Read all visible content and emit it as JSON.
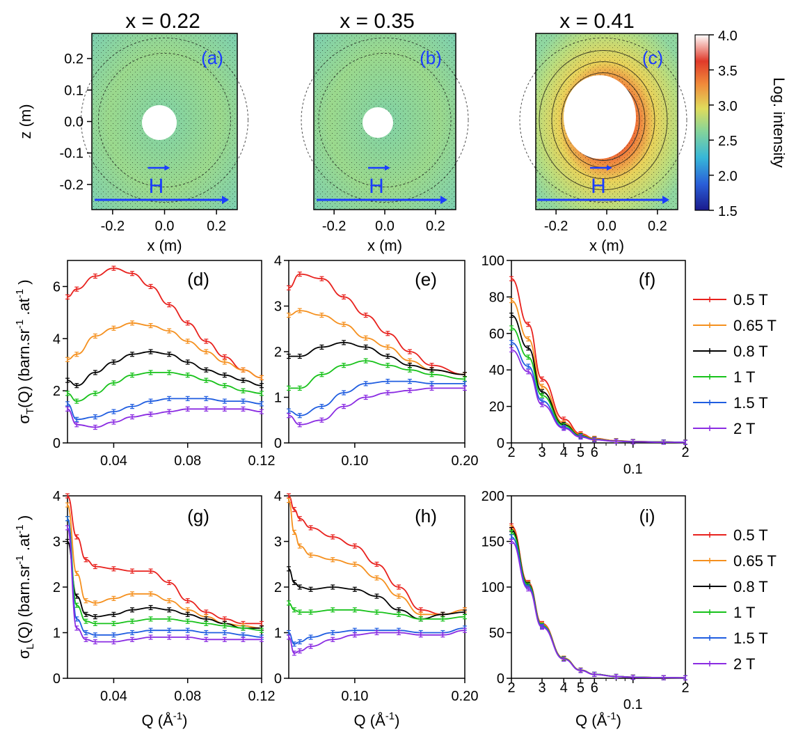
{
  "titles": [
    "x = 0.22",
    "x = 0.35",
    "x = 0.41"
  ],
  "maps": {
    "panels": [
      "(a)",
      "(b)",
      "(c)"
    ],
    "xlabel": "x (m)",
    "ylabel": "z (m)",
    "xticks": [
      "-0.2",
      "0.0",
      "0.2"
    ],
    "yticks": [
      "0.2",
      "0.1",
      "0.0",
      "-0.1",
      "-0.2"
    ],
    "field_label": "H",
    "colorbar": {
      "label": "Log. intensity",
      "ticks": [
        "4.0",
        "3.5",
        "3.0",
        "2.5",
        "2.0",
        "1.5"
      ],
      "range": [
        1.5,
        4.0
      ]
    },
    "colors": {
      "background_low": "#79cfa8",
      "background_high": "#c9dd74",
      "hole": "#ffffff",
      "arrow": "#1a3cff"
    }
  },
  "ylabel_T": "σT(Q) (barn.sr-1.at-1)",
  "ylabel_L": "σL(Q) (barn.sr-1.at-1)",
  "xlabel_Q": "Q (Å-1)",
  "legend": {
    "entries": [
      "0.5 T",
      "0.65 T",
      "0.8 T",
      "1 T",
      "1.5 T",
      "2 T"
    ],
    "colors": [
      "#e8211d",
      "#f5901e",
      "#000000",
      "#17c21a",
      "#1f5de0",
      "#8a2be2"
    ]
  },
  "chart_data": [
    {
      "panel": "(d)",
      "type": "line",
      "x": [
        0.015,
        0.02,
        0.03,
        0.04,
        0.05,
        0.06,
        0.07,
        0.08,
        0.09,
        0.1,
        0.11,
        0.12
      ],
      "xlim": [
        0.015,
        0.12
      ],
      "xticks": [
        "0.04",
        "0.08",
        "0.12"
      ],
      "ylim": [
        0,
        7
      ],
      "yticks": [
        "0",
        "2",
        "4",
        "6"
      ],
      "series": [
        {
          "name": "0.5 T",
          "values": [
            5.6,
            5.9,
            6.4,
            6.7,
            6.5,
            6.0,
            5.3,
            4.6,
            3.9,
            3.3,
            2.8,
            2.5
          ]
        },
        {
          "name": "0.65 T",
          "values": [
            3.2,
            3.4,
            4.1,
            4.4,
            4.6,
            4.5,
            4.3,
            3.9,
            3.5,
            3.1,
            2.8,
            2.5
          ]
        },
        {
          "name": "0.8 T",
          "values": [
            2.4,
            2.2,
            2.7,
            3.1,
            3.4,
            3.5,
            3.4,
            3.1,
            2.8,
            2.6,
            2.4,
            2.2
          ]
        },
        {
          "name": "1 T",
          "values": [
            1.9,
            1.6,
            1.9,
            2.3,
            2.6,
            2.7,
            2.7,
            2.6,
            2.4,
            2.2,
            2.0,
            1.9
          ]
        },
        {
          "name": "1.5 T",
          "values": [
            1.5,
            0.9,
            1.0,
            1.2,
            1.4,
            1.6,
            1.7,
            1.7,
            1.7,
            1.6,
            1.6,
            1.5
          ]
        },
        {
          "name": "2 T",
          "values": [
            1.3,
            0.7,
            0.6,
            0.8,
            1.0,
            1.1,
            1.2,
            1.3,
            1.3,
            1.3,
            1.3,
            1.2
          ]
        }
      ]
    },
    {
      "panel": "(e)",
      "type": "line",
      "x": [
        0.04,
        0.05,
        0.07,
        0.09,
        0.11,
        0.13,
        0.15,
        0.17,
        0.2
      ],
      "xlim": [
        0.04,
        0.2
      ],
      "xticks": [
        "0.10",
        "0.20"
      ],
      "ylim": [
        0,
        4
      ],
      "yticks": [
        "0",
        "1",
        "2",
        "3",
        "4"
      ],
      "series": [
        {
          "name": "0.5 T",
          "values": [
            3.4,
            3.7,
            3.6,
            3.2,
            2.8,
            2.4,
            2.0,
            1.7,
            1.5
          ]
        },
        {
          "name": "0.65 T",
          "values": [
            2.8,
            2.9,
            2.8,
            2.6,
            2.3,
            2.1,
            1.8,
            1.6,
            1.5
          ]
        },
        {
          "name": "0.8 T",
          "values": [
            1.9,
            1.9,
            2.1,
            2.2,
            2.1,
            1.9,
            1.7,
            1.6,
            1.5
          ]
        },
        {
          "name": "1 T",
          "values": [
            1.2,
            1.2,
            1.5,
            1.7,
            1.8,
            1.7,
            1.6,
            1.5,
            1.4
          ]
        },
        {
          "name": "1.5 T",
          "values": [
            0.7,
            0.6,
            0.8,
            1.1,
            1.3,
            1.35,
            1.35,
            1.3,
            1.3
          ]
        },
        {
          "name": "2 T",
          "values": [
            0.6,
            0.4,
            0.5,
            0.8,
            1.0,
            1.1,
            1.15,
            1.2,
            1.2
          ]
        }
      ]
    },
    {
      "panel": "(f)",
      "type": "line",
      "xscale": "log",
      "x": [
        0.02,
        0.025,
        0.03,
        0.04,
        0.05,
        0.06,
        0.08,
        0.1,
        0.15,
        0.2
      ],
      "xlim": [
        0.02,
        0.2
      ],
      "xticks": [
        "2",
        "3",
        "4",
        "5",
        "6",
        "0.1",
        "2"
      ],
      "ylim": [
        0,
        100
      ],
      "yticks": [
        "0",
        "20",
        "40",
        "60",
        "80",
        "100"
      ],
      "series": [
        {
          "name": "0.5 T",
          "values": [
            90,
            65,
            35,
            13,
            5,
            2.5,
            1.2,
            0.8,
            0.5,
            0.4
          ]
        },
        {
          "name": "0.65 T",
          "values": [
            78,
            57,
            31,
            11,
            4.5,
            2.3,
            1.1,
            0.7,
            0.5,
            0.4
          ]
        },
        {
          "name": "0.8 T",
          "values": [
            70,
            52,
            28,
            10,
            4,
            2,
            1,
            0.7,
            0.5,
            0.4
          ]
        },
        {
          "name": "1 T",
          "values": [
            63,
            47,
            26,
            9.5,
            3.8,
            2,
            1,
            0.7,
            0.5,
            0.4
          ]
        },
        {
          "name": "1.5 T",
          "values": [
            55,
            42,
            23,
            8.5,
            3.5,
            1.8,
            0.9,
            0.6,
            0.4,
            0.3
          ]
        },
        {
          "name": "2 T",
          "values": [
            51,
            39,
            21,
            8,
            3.2,
            1.7,
            0.9,
            0.6,
            0.4,
            0.3
          ]
        }
      ]
    },
    {
      "panel": "(g)",
      "type": "line",
      "x": [
        0.015,
        0.02,
        0.025,
        0.03,
        0.04,
        0.05,
        0.06,
        0.07,
        0.08,
        0.09,
        0.1,
        0.11,
        0.12
      ],
      "xlim": [
        0.015,
        0.12
      ],
      "xticks": [
        "0.04",
        "0.08",
        "0.12"
      ],
      "ylim": [
        0,
        4
      ],
      "yticks": [
        "0",
        "1",
        "2",
        "3",
        "4"
      ],
      "series": [
        {
          "name": "0.5 T",
          "values": [
            4.0,
            3.1,
            2.6,
            2.45,
            2.4,
            2.35,
            2.35,
            2.1,
            1.7,
            1.45,
            1.3,
            1.2,
            1.2
          ]
        },
        {
          "name": "0.65 T",
          "values": [
            3.8,
            2.3,
            1.7,
            1.65,
            1.75,
            1.85,
            1.85,
            1.7,
            1.5,
            1.35,
            1.2,
            1.15,
            1.1
          ]
        },
        {
          "name": "0.8 T",
          "values": [
            3.0,
            1.8,
            1.4,
            1.35,
            1.4,
            1.5,
            1.55,
            1.5,
            1.4,
            1.3,
            1.2,
            1.1,
            1.1
          ]
        },
        {
          "name": "1 T",
          "values": [
            3.5,
            1.6,
            1.25,
            1.2,
            1.2,
            1.25,
            1.3,
            1.3,
            1.25,
            1.2,
            1.15,
            1.1,
            1.05
          ]
        },
        {
          "name": "1.5 T",
          "values": [
            3.5,
            1.3,
            1.0,
            0.95,
            0.95,
            1.0,
            1.05,
            1.05,
            1.05,
            1.0,
            1.0,
            0.95,
            0.9
          ]
        },
        {
          "name": "2 T",
          "values": [
            3.3,
            1.1,
            0.85,
            0.8,
            0.8,
            0.85,
            0.9,
            0.9,
            0.9,
            0.85,
            0.85,
            0.85,
            0.85
          ]
        }
      ]
    },
    {
      "panel": "(h)",
      "type": "line",
      "x": [
        0.04,
        0.045,
        0.05,
        0.06,
        0.08,
        0.1,
        0.12,
        0.14,
        0.16,
        0.18,
        0.2
      ],
      "xlim": [
        0.04,
        0.2
      ],
      "xticks": [
        "0.10",
        "0.20"
      ],
      "ylim": [
        0,
        4
      ],
      "yticks": [
        "0",
        "1",
        "2",
        "3",
        "4"
      ],
      "series": [
        {
          "name": "0.5 T",
          "values": [
            4.0,
            3.7,
            3.5,
            3.3,
            3.1,
            2.9,
            2.5,
            2.0,
            1.5,
            1.4,
            1.5
          ]
        },
        {
          "name": "0.65 T",
          "values": [
            3.9,
            3.2,
            2.9,
            2.7,
            2.6,
            2.5,
            2.2,
            1.8,
            1.4,
            1.4,
            1.5
          ]
        },
        {
          "name": "0.8 T",
          "values": [
            2.4,
            2.1,
            2.0,
            1.95,
            2.0,
            1.95,
            1.8,
            1.5,
            1.3,
            1.4,
            1.45
          ]
        },
        {
          "name": "1 T",
          "values": [
            1.65,
            1.5,
            1.45,
            1.45,
            1.5,
            1.5,
            1.45,
            1.4,
            1.3,
            1.3,
            1.35
          ]
        },
        {
          "name": "1.5 T",
          "values": [
            1.0,
            0.75,
            0.8,
            0.9,
            1.0,
            1.05,
            1.05,
            1.05,
            1.0,
            1.0,
            1.1
          ]
        },
        {
          "name": "2 T",
          "values": [
            0.9,
            0.55,
            0.6,
            0.7,
            0.85,
            0.95,
            1.0,
            1.0,
            0.95,
            0.95,
            1.05
          ]
        }
      ]
    },
    {
      "panel": "(i)",
      "type": "line",
      "xscale": "log",
      "x": [
        0.02,
        0.025,
        0.03,
        0.04,
        0.05,
        0.06,
        0.08,
        0.1,
        0.15,
        0.2
      ],
      "xlim": [
        0.02,
        0.2
      ],
      "xticks": [
        "2",
        "3",
        "4",
        "5",
        "6",
        "0.1",
        "2"
      ],
      "ylim": [
        0,
        200
      ],
      "yticks": [
        "0",
        "50",
        "100",
        "150",
        "200"
      ],
      "series": [
        {
          "name": "0.5 T",
          "values": [
            167,
            105,
            60,
            22,
            9,
            4.5,
            2,
            1.2,
            0.7,
            0.5
          ]
        },
        {
          "name": "0.65 T",
          "values": [
            165,
            104,
            59,
            22,
            9,
            4.5,
            2,
            1.2,
            0.7,
            0.5
          ]
        },
        {
          "name": "0.8 T",
          "values": [
            163,
            103,
            58,
            21.5,
            8.8,
            4.4,
            2,
            1.2,
            0.7,
            0.5
          ]
        },
        {
          "name": "1 T",
          "values": [
            160,
            102,
            58,
            21.5,
            8.8,
            4.4,
            2,
            1.2,
            0.7,
            0.5
          ]
        },
        {
          "name": "1.5 T",
          "values": [
            155,
            100,
            57,
            21,
            8.6,
            4.3,
            1.9,
            1.1,
            0.7,
            0.5
          ]
        },
        {
          "name": "2 T",
          "values": [
            150,
            98,
            56,
            21,
            8.5,
            4.2,
            1.9,
            1.1,
            0.7,
            0.5
          ]
        }
      ]
    }
  ]
}
